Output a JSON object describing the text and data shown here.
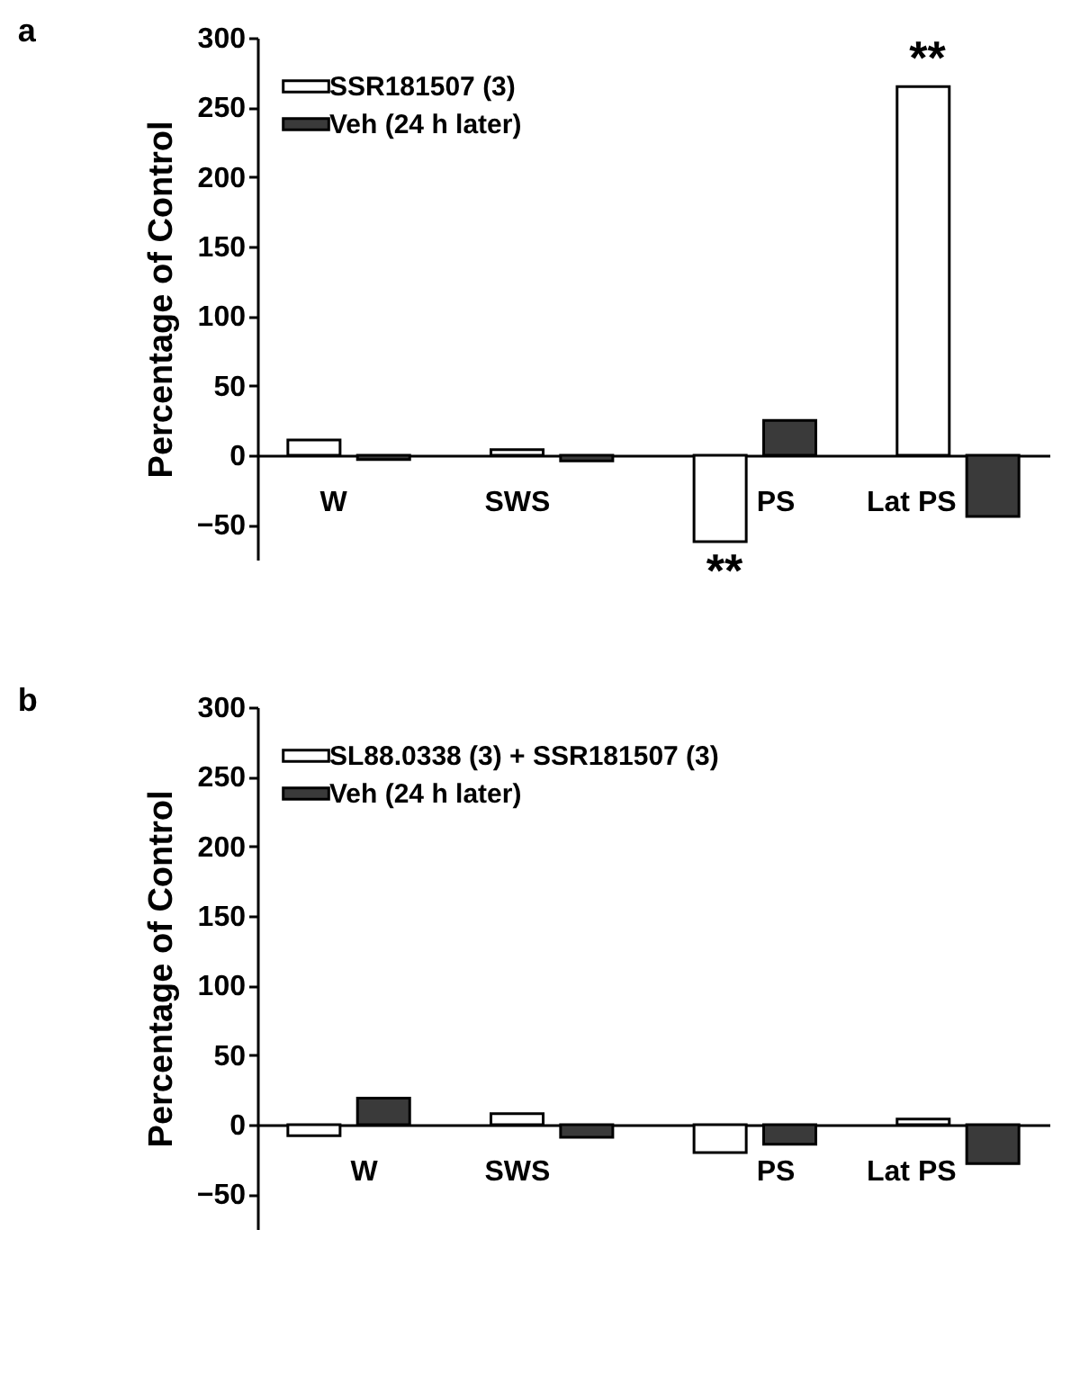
{
  "chart_data": [
    {
      "type": "bar",
      "title": "a",
      "ylabel": "Percentage of Control",
      "categories": [
        "W",
        "SWS",
        "PS",
        "Lat PS"
      ],
      "series": [
        {
          "name": "SSR181507 (3)",
          "color": "#ffffff",
          "values": [
            11,
            4,
            -62,
            265
          ]
        },
        {
          "name": "Veh (24 h later)",
          "color": "#3a3a3a",
          "values": [
            -3,
            -4,
            25,
            -44
          ]
        }
      ],
      "ylim": [
        -75,
        300
      ],
      "yticks": [
        -50,
        0,
        50,
        100,
        150,
        200,
        250,
        300
      ],
      "legend": "top left",
      "annotations": [
        "**",
        "**"
      ]
    },
    {
      "type": "bar",
      "title": "b",
      "ylabel": "Percentage of Control",
      "categories": [
        "W",
        "SWS",
        "PS",
        "Lat PS"
      ],
      "series": [
        {
          "name": "SL88.0338 (3) + SSR181507 (3)",
          "color": "#ffffff",
          "values": [
            -8,
            8,
            -20,
            4
          ]
        },
        {
          "name": "Veh (24 h later)",
          "color": "#3a3a3a",
          "values": [
            19,
            -9,
            -14,
            -28
          ]
        }
      ],
      "ylim": [
        -75,
        300
      ],
      "yticks": [
        -50,
        0,
        50,
        100,
        150,
        200,
        250,
        300
      ],
      "legend": "top left"
    }
  ]
}
